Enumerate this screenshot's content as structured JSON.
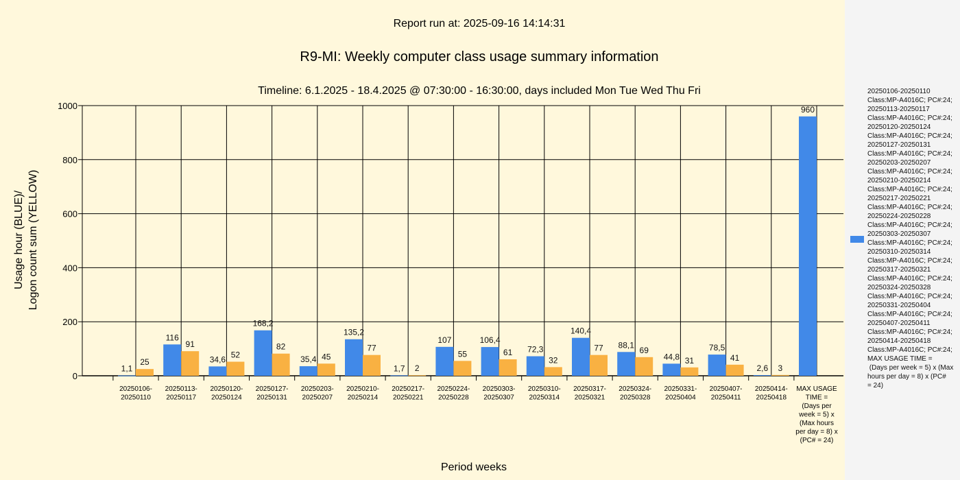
{
  "chart_data": {
    "type": "bar",
    "report_run": "Report run at: 2025-09-16 14:14:31",
    "title": "R9-MI: Weekly computer class usage summary information",
    "subtitle": "Timeline:  6.1.2025  - 18.4.2025  @  07:30:00 -  16:30:00, days included Mon Tue Wed Thu Fri",
    "xlabel": "Period weeks",
    "ylabel": [
      "Usage hour (BLUE)/",
      "Logon count sum (YELLOW)"
    ],
    "ylim": [
      0,
      1000
    ],
    "yticks": [
      0,
      200,
      400,
      600,
      800,
      1000
    ],
    "grid": true,
    "legend_position": "right",
    "categories": [
      [
        "20250106-",
        "20250110"
      ],
      [
        "20250113-",
        "20250117"
      ],
      [
        "20250120-",
        "20250124"
      ],
      [
        "20250127-",
        "20250131"
      ],
      [
        "20250203-",
        "20250207"
      ],
      [
        "20250210-",
        "20250214"
      ],
      [
        "20250217-",
        "20250221"
      ],
      [
        "20250224-",
        "20250228"
      ],
      [
        "20250303-",
        "20250307"
      ],
      [
        "20250310-",
        "20250314"
      ],
      [
        "20250317-",
        "20250321"
      ],
      [
        "20250324-",
        "20250328"
      ],
      [
        "20250331-",
        "20250404"
      ],
      [
        "20250407-",
        "20250411"
      ],
      [
        "20250414-",
        "20250418"
      ],
      [
        "MAX USAGE",
        "TIME =",
        "(Days per",
        "week = 5) x",
        "(Max hours",
        "per day = 8) x",
        "(PC# = 24)"
      ]
    ],
    "series": [
      {
        "name": "Usage hour",
        "color": "#4189e8",
        "values": [
          1.1,
          116,
          34.6,
          168.2,
          35.4,
          135.2,
          1.7,
          107,
          106.4,
          72.3,
          140.4,
          88.1,
          44.8,
          78.5,
          2.6,
          960
        ],
        "labels": [
          "1,1",
          "116",
          "34,6",
          "168,2",
          "35,4",
          "135,2",
          "1,7",
          "107",
          "106,4",
          "72,3",
          "140,4",
          "88,1",
          "44,8",
          "78,5",
          "2,6",
          "960"
        ]
      },
      {
        "name": "Logon count sum",
        "color": "#f9b142",
        "values": [
          25,
          91,
          52,
          82,
          45,
          77,
          2,
          55,
          61,
          32,
          77,
          69,
          31,
          41,
          3,
          null
        ],
        "labels": [
          "25",
          "91",
          "52",
          "82",
          "45",
          "77",
          "2",
          "55",
          "61",
          "32",
          "77",
          "69",
          "31",
          "41",
          "3",
          ""
        ]
      }
    ],
    "legend_text": "20250106-20250110\nClass:MP-A4016C; PC#:24;\n20250113-20250117\nClass:MP-A4016C; PC#:24;\n20250120-20250124\nClass:MP-A4016C; PC#:24;\n20250127-20250131\nClass:MP-A4016C; PC#:24;\n20250203-20250207\nClass:MP-A4016C; PC#:24;\n20250210-20250214\nClass:MP-A4016C; PC#:24;\n20250217-20250221\nClass:MP-A4016C; PC#:24;\n20250224-20250228\nClass:MP-A4016C; PC#:24;\n20250303-20250307\nClass:MP-A4016C; PC#:24;\n20250310-20250314\nClass:MP-A4016C; PC#:24;\n20250317-20250321\nClass:MP-A4016C; PC#:24;\n20250324-20250328\nClass:MP-A4016C; PC#:24;\n20250331-20250404\nClass:MP-A4016C; PC#:24;\n20250407-20250411\nClass:MP-A4016C; PC#:24;\n20250414-20250418\nClass:MP-A4016C; PC#:24;\nMAX USAGE TIME =\n (Days per week = 5) x (Max\nhours per day = 8) x (PC#\n= 24)"
  }
}
